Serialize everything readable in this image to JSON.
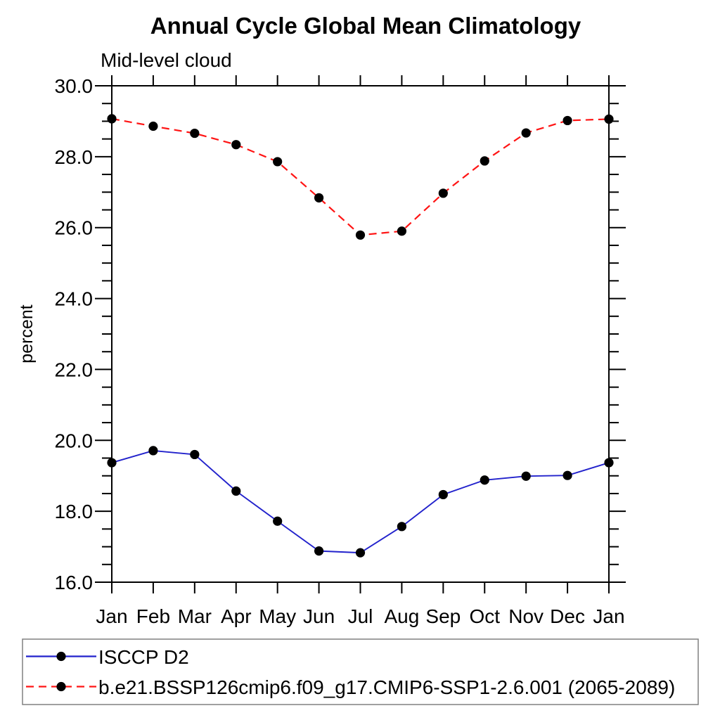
{
  "page": {
    "background": "#ffffff"
  },
  "chart_data": {
    "type": "line",
    "title": "Annual Cycle Global Mean Climatology",
    "subtitle": "Mid-level cloud",
    "xlabel": "",
    "ylabel": "percent",
    "categories": [
      "Jan",
      "Feb",
      "Mar",
      "Apr",
      "May",
      "Jun",
      "Jul",
      "Aug",
      "Sep",
      "Oct",
      "Nov",
      "Dec",
      "Jan"
    ],
    "ylim": [
      16.0,
      30.0
    ],
    "ytick_major_step": 2.0,
    "ytick_minor_step": 0.5,
    "ytick_labels": [
      "16.0",
      "18.0",
      "20.0",
      "22.0",
      "24.0",
      "26.0",
      "28.0",
      "30.0"
    ],
    "grid": false,
    "legend_position": "bottom-left-box",
    "series": [
      {
        "name": "ISCCP D2",
        "color": "#2222cc",
        "style": "solid",
        "marker": "filled-circle",
        "marker_color": "#000000",
        "values": [
          19.37,
          19.71,
          19.6,
          18.57,
          17.72,
          16.88,
          16.83,
          17.57,
          18.47,
          18.88,
          18.99,
          19.01,
          19.37
        ]
      },
      {
        "name": "b.e21.BSSP126cmip6.f09_g17.CMIP6-SSP1-2.6.001 (2065-2089)",
        "color": "#ff1414",
        "style": "dashed",
        "marker": "filled-circle",
        "marker_color": "#000000",
        "values": [
          29.07,
          28.86,
          28.66,
          28.34,
          27.86,
          26.84,
          25.79,
          25.9,
          26.97,
          27.88,
          28.67,
          29.02,
          29.06
        ]
      }
    ]
  }
}
